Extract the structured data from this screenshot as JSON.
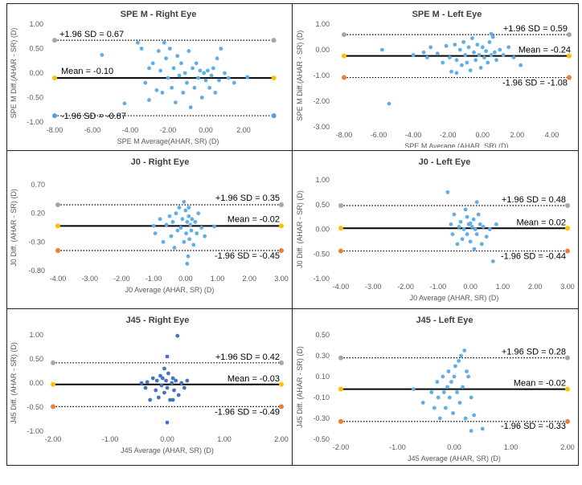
{
  "chart_data": [
    {
      "type": "scatter",
      "title": "SPE M - Right Eye",
      "xlabel": "SPE M Average(AHAR, SR) (D)",
      "ylabel": "SPE M Diff.(AHAR - SR) (D)",
      "xlim": [
        -8,
        4
      ],
      "ylim": [
        -1.0,
        1.0
      ],
      "xticks": [
        "-8.00",
        "-6.00",
        "-4.00",
        "-2.00",
        "0.00",
        "2.00"
      ],
      "yticks": [
        "1.00",
        "0.50",
        "0.00",
        "-0.50",
        "-1.00"
      ],
      "line_end_x": 3.6,
      "lines": [
        {
          "label": "+1.96 SD = 0.67",
          "value": 0.67,
          "style": "dotted",
          "marker": "#a6a6a6"
        },
        {
          "label": "Mean = -0.10",
          "value": -0.1,
          "style": "solid",
          "marker": "#ffc000"
        },
        {
          "label": "-1.96 SD = -0.87",
          "value": -0.87,
          "style": "dotted",
          "marker": "#5b9bd5"
        }
      ],
      "points": [
        [
          -5.5,
          0.37
        ],
        [
          -4.3,
          -0.62
        ],
        [
          -3.6,
          0.62
        ],
        [
          -3.4,
          0.5
        ],
        [
          -3.2,
          -0.2
        ],
        [
          -3.0,
          0.1
        ],
        [
          -3.0,
          -0.55
        ],
        [
          -2.8,
          0.2
        ],
        [
          -2.6,
          -0.35
        ],
        [
          -2.5,
          0.45
        ],
        [
          -2.4,
          0.05
        ],
        [
          -2.3,
          -0.4
        ],
        [
          -2.2,
          0.62
        ],
        [
          -2.1,
          0.3
        ],
        [
          -2.0,
          -0.1
        ],
        [
          -1.9,
          0.5
        ],
        [
          -1.8,
          -0.3
        ],
        [
          -1.7,
          0.1
        ],
        [
          -1.6,
          -0.6
        ],
        [
          -1.5,
          0.35
        ],
        [
          -1.4,
          -0.05
        ],
        [
          -1.3,
          0.2
        ],
        [
          -1.2,
          -0.4
        ],
        [
          -1.1,
          0.0
        ],
        [
          -1.0,
          -0.2
        ],
        [
          -0.9,
          0.45
        ],
        [
          -0.8,
          -0.7
        ],
        [
          -0.7,
          0.1
        ],
        [
          -0.6,
          -0.3
        ],
        [
          -0.5,
          0.2
        ],
        [
          -0.4,
          -0.1
        ],
        [
          -0.3,
          0.05
        ],
        [
          -0.2,
          -0.5
        ],
        [
          -0.1,
          0.0
        ],
        [
          0.0,
          -0.15
        ],
        [
          0.1,
          0.05
        ],
        [
          0.2,
          -0.3
        ],
        [
          0.3,
          -0.05
        ],
        [
          0.4,
          0.1
        ],
        [
          0.5,
          -0.4
        ],
        [
          0.6,
          0.3
        ],
        [
          0.7,
          -0.15
        ],
        [
          0.8,
          0.5
        ],
        [
          1.0,
          0.0
        ],
        [
          1.2,
          -0.1
        ],
        [
          1.5,
          -0.2
        ],
        [
          2.2,
          -0.08
        ]
      ]
    },
    {
      "type": "scatter",
      "title": "SPE M  - Left Eye",
      "xlabel": "SPE M Average (AHAR, SR) (D)",
      "ylabel": "SPE M Diff.(AHAR - SR) (D)",
      "xlim": [
        -8,
        5
      ],
      "ylim": [
        -3.0,
        1.0
      ],
      "xticks": [
        "-8.00",
        "-6.00",
        "-4.00",
        "-2.00",
        "0.00",
        "2.00",
        "4.00"
      ],
      "yticks": [
        "1.00",
        "0.00",
        "-1.00",
        "-2.00",
        "-3.00"
      ],
      "line_end_x": 5.0,
      "lines": [
        {
          "label": "+1.96 SD = 0.59",
          "value": 0.59,
          "style": "dotted",
          "marker": "#a6a6a6"
        },
        {
          "label": "Mean = -0.24",
          "value": -0.24,
          "style": "solid",
          "marker": "#ffc000"
        },
        {
          "label": "-1.96 SD = -1.08",
          "value": -1.08,
          "style": "dotted",
          "marker": "#ed7d31"
        }
      ],
      "points": [
        [
          -5.8,
          0.0
        ],
        [
          -5.4,
          -2.1
        ],
        [
          -4.0,
          -0.2
        ],
        [
          -3.4,
          -0.1
        ],
        [
          -3.2,
          -0.3
        ],
        [
          -3.0,
          0.1
        ],
        [
          -2.6,
          -0.15
        ],
        [
          -2.3,
          -0.5
        ],
        [
          -2.1,
          0.15
        ],
        [
          -1.9,
          -0.3
        ],
        [
          -1.8,
          -0.85
        ],
        [
          -1.6,
          0.2
        ],
        [
          -1.5,
          -0.4
        ],
        [
          -1.3,
          0.0
        ],
        [
          -1.2,
          -0.6
        ],
        [
          -1.1,
          0.3
        ],
        [
          -1.0,
          -0.2
        ],
        [
          -0.9,
          -0.5
        ],
        [
          -0.8,
          0.1
        ],
        [
          -0.7,
          -0.8
        ],
        [
          -0.6,
          0.45
        ],
        [
          -0.5,
          -0.1
        ],
        [
          -0.4,
          -0.4
        ],
        [
          -0.3,
          0.2
        ],
        [
          -0.2,
          -0.2
        ],
        [
          -0.1,
          -0.7
        ],
        [
          0.0,
          0.1
        ],
        [
          0.1,
          -0.3
        ],
        [
          0.2,
          -0.05
        ],
        [
          0.3,
          -0.5
        ],
        [
          0.4,
          0.3
        ],
        [
          0.5,
          -0.2
        ],
        [
          0.6,
          0.5
        ],
        [
          0.7,
          -0.1
        ],
        [
          0.8,
          -0.4
        ],
        [
          1.0,
          0.0
        ],
        [
          1.2,
          -0.2
        ],
        [
          1.5,
          0.1
        ],
        [
          1.8,
          -0.3
        ],
        [
          2.2,
          -0.6
        ],
        [
          0.5,
          0.62
        ],
        [
          -1.5,
          -0.9
        ]
      ]
    },
    {
      "type": "scatter",
      "title": "J0 - Right Eye",
      "xlabel": "J0 Average (AHAR, SR) (D)",
      "ylabel": "J0 Diff. (AHAR - SR) (D)",
      "xlim": [
        -4,
        3
      ],
      "ylim": [
        -0.8,
        0.7
      ],
      "xticks": [
        "-4.00",
        "-3.00",
        "-2.00",
        "-1.00",
        "0.00",
        "1.00",
        "2.00",
        "3.00"
      ],
      "yticks": [
        "0.70",
        "0.20",
        "-0.30",
        "-0.80"
      ],
      "line_end_x": 3.0,
      "lines": [
        {
          "label": "+1.96 SD = 0.35",
          "value": 0.35,
          "style": "dotted",
          "marker": "#a6a6a6"
        },
        {
          "label": "Mean = -0.02",
          "value": -0.02,
          "style": "solid",
          "marker": "#ffc000"
        },
        {
          "label": "-1.96 SD = -0.45",
          "value": -0.45,
          "style": "dotted",
          "marker": "#ed7d31"
        }
      ],
      "points": [
        [
          -1.0,
          -0.02
        ],
        [
          -0.95,
          -0.15
        ],
        [
          -0.8,
          0.1
        ],
        [
          -0.7,
          -0.3
        ],
        [
          -0.6,
          0.0
        ],
        [
          -0.5,
          0.15
        ],
        [
          -0.45,
          -0.2
        ],
        [
          -0.4,
          0.05
        ],
        [
          -0.35,
          -0.4
        ],
        [
          -0.3,
          0.2
        ],
        [
          -0.25,
          -0.1
        ],
        [
          -0.2,
          0.3
        ],
        [
          -0.15,
          -0.05
        ],
        [
          -0.1,
          0.1
        ],
        [
          -0.05,
          -0.3
        ],
        [
          0.0,
          0.25
        ],
        [
          0.02,
          -0.15
        ],
        [
          0.05,
          0.05
        ],
        [
          0.08,
          -0.55
        ],
        [
          0.1,
          0.15
        ],
        [
          0.12,
          -0.25
        ],
        [
          0.15,
          0.0
        ],
        [
          0.18,
          -0.1
        ],
        [
          0.2,
          0.1
        ],
        [
          0.25,
          -0.35
        ],
        [
          0.3,
          0.05
        ],
        [
          0.35,
          -0.15
        ],
        [
          0.4,
          0.2
        ],
        [
          0.5,
          -0.05
        ],
        [
          0.6,
          -0.2
        ],
        [
          0.9,
          -0.03
        ],
        [
          -0.05,
          0.4
        ],
        [
          0.05,
          -0.68
        ],
        [
          0.1,
          0.3
        ]
      ]
    },
    {
      "type": "scatter",
      "title": "J0  - Left Eye",
      "xlabel": "J0 Average (AHAR, SR) (D)",
      "ylabel": "J0 Diff. (AHAR - SR) (D)",
      "xlim": [
        -4,
        3
      ],
      "ylim": [
        -1.0,
        1.0
      ],
      "xticks": [
        "-4.00",
        "-3.00",
        "-2.00",
        "-1.00",
        "0.00",
        "1.00",
        "2.00",
        "3.00"
      ],
      "yticks": [
        "1.00",
        "0.50",
        "0.00",
        "-0.50",
        "-1.00"
      ],
      "line_end_x": 3.0,
      "lines": [
        {
          "label": "+1.96 SD = 0.48",
          "value": 0.48,
          "style": "dotted",
          "marker": "#a6a6a6"
        },
        {
          "label": "Mean = 0.02",
          "value": 0.02,
          "style": "solid",
          "marker": "#ffc000"
        },
        {
          "label": "-1.96 SD = -0.44",
          "value": -0.44,
          "style": "dotted",
          "marker": "#ed7d31"
        }
      ],
      "points": [
        [
          -0.7,
          0.75
        ],
        [
          -0.6,
          0.1
        ],
        [
          -0.55,
          -0.1
        ],
        [
          -0.5,
          0.3
        ],
        [
          -0.4,
          -0.3
        ],
        [
          -0.35,
          0.05
        ],
        [
          -0.3,
          0.15
        ],
        [
          -0.25,
          -0.2
        ],
        [
          -0.2,
          0.0
        ],
        [
          -0.15,
          0.4
        ],
        [
          -0.1,
          -0.1
        ],
        [
          -0.05,
          0.1
        ],
        [
          0.0,
          -0.25
        ],
        [
          0.05,
          0.05
        ],
        [
          0.1,
          0.2
        ],
        [
          0.12,
          -0.4
        ],
        [
          0.15,
          0.0
        ],
        [
          0.2,
          -0.1
        ],
        [
          0.25,
          0.3
        ],
        [
          0.3,
          0.1
        ],
        [
          0.35,
          -0.3
        ],
        [
          0.4,
          0.05
        ],
        [
          0.5,
          -0.15
        ],
        [
          0.6,
          0.0
        ],
        [
          0.7,
          -0.65
        ],
        [
          0.8,
          0.1
        ],
        [
          0.2,
          0.55
        ],
        [
          -0.1,
          0.25
        ],
        [
          0.0,
          0.12
        ]
      ]
    },
    {
      "type": "scatter",
      "title": "J45 - Right Eye",
      "xlabel": "J45 Average (AHAR, SR) (D)",
      "ylabel": "J45 Diff. (AHAR - SR) (D)",
      "xlim": [
        -2,
        2
      ],
      "ylim": [
        -1.0,
        1.0
      ],
      "xticks": [
        "-2.00",
        "-1.00",
        "0.00",
        "1.00",
        "2.00"
      ],
      "yticks": [
        "1.00",
        "0.50",
        "0.00",
        "-0.50",
        "-1.00"
      ],
      "line_end_x": 2.0,
      "lines": [
        {
          "label": "+1.96 SD = 0.42",
          "value": 0.42,
          "style": "dotted",
          "marker": "#a6a6a6"
        },
        {
          "label": "Mean = -0.03",
          "value": -0.03,
          "style": "solid",
          "marker": "#ffc000"
        },
        {
          "label": "-1.96 SD = -0.49",
          "value": -0.49,
          "style": "dotted",
          "marker": "#ed7d31"
        }
      ],
      "points": [
        [
          -0.45,
          0.0
        ],
        [
          -0.38,
          -0.1
        ],
        [
          -0.35,
          0.02
        ],
        [
          -0.3,
          -0.35
        ],
        [
          -0.25,
          0.1
        ],
        [
          -0.2,
          -0.15
        ],
        [
          -0.18,
          0.05
        ],
        [
          -0.15,
          -0.3
        ],
        [
          -0.12,
          0.15
        ],
        [
          -0.1,
          -0.05
        ],
        [
          -0.08,
          0.1
        ],
        [
          -0.05,
          -0.2
        ],
        [
          -0.02,
          0.05
        ],
        [
          0.0,
          -0.1
        ],
        [
          0.02,
          0.2
        ],
        [
          0.05,
          -0.35
        ],
        [
          0.08,
          0.0
        ],
        [
          0.1,
          0.1
        ],
        [
          0.12,
          -0.15
        ],
        [
          0.15,
          0.05
        ],
        [
          0.2,
          -0.25
        ],
        [
          0.25,
          0.0
        ],
        [
          0.3,
          -0.1
        ],
        [
          0.35,
          0.05
        ],
        [
          0.18,
          0.98
        ],
        [
          0.0,
          0.55
        ],
        [
          -0.05,
          0.3
        ],
        [
          0.0,
          -0.82
        ],
        [
          0.1,
          -0.35
        ]
      ]
    },
    {
      "type": "scatter",
      "title": "J45 - Left Eye",
      "xlabel": "J45 Average (AHAR, SR) (D)",
      "ylabel": "J45 Diff. (AHAR - SR) (D)",
      "xlim": [
        -2,
        2
      ],
      "ylim": [
        -0.5,
        0.5
      ],
      "xticks": [
        "-2.00",
        "-1.00",
        "0.00",
        "1.00",
        "2.00"
      ],
      "yticks": [
        "0.50",
        "0.30",
        "0.10",
        "-0.10",
        "-0.30",
        "-0.50"
      ],
      "line_end_x": 2.0,
      "lines": [
        {
          "label": "+1.96 SD = 0.28",
          "value": 0.28,
          "style": "dotted",
          "marker": "#a6a6a6"
        },
        {
          "label": "Mean = -0.02",
          "value": -0.02,
          "style": "solid",
          "marker": "#ffc000"
        },
        {
          "label": "-1.96 SD = -0.33",
          "value": -0.33,
          "style": "dotted",
          "marker": "#ed7d31"
        }
      ],
      "points": [
        [
          -0.72,
          -0.02
        ],
        [
          -0.55,
          -0.15
        ],
        [
          -0.4,
          -0.05
        ],
        [
          -0.35,
          -0.2
        ],
        [
          -0.3,
          0.05
        ],
        [
          -0.28,
          -0.1
        ],
        [
          -0.25,
          -0.3
        ],
        [
          -0.2,
          0.1
        ],
        [
          -0.18,
          -0.05
        ],
        [
          -0.15,
          -0.2
        ],
        [
          -0.12,
          0.0
        ],
        [
          -0.1,
          0.15
        ],
        [
          -0.08,
          -0.1
        ],
        [
          -0.05,
          0.05
        ],
        [
          -0.02,
          -0.25
        ],
        [
          0.0,
          0.1
        ],
        [
          0.02,
          0.2
        ],
        [
          0.05,
          -0.05
        ],
        [
          0.08,
          0.25
        ],
        [
          0.1,
          -0.15
        ],
        [
          0.12,
          0.3
        ],
        [
          0.15,
          0.0
        ],
        [
          0.18,
          0.35
        ],
        [
          0.2,
          -0.3
        ],
        [
          0.25,
          0.1
        ],
        [
          0.3,
          -0.1
        ],
        [
          0.35,
          -0.27
        ],
        [
          0.5,
          -0.4
        ],
        [
          0.3,
          -0.42
        ],
        [
          0.22,
          0.15
        ]
      ]
    }
  ]
}
